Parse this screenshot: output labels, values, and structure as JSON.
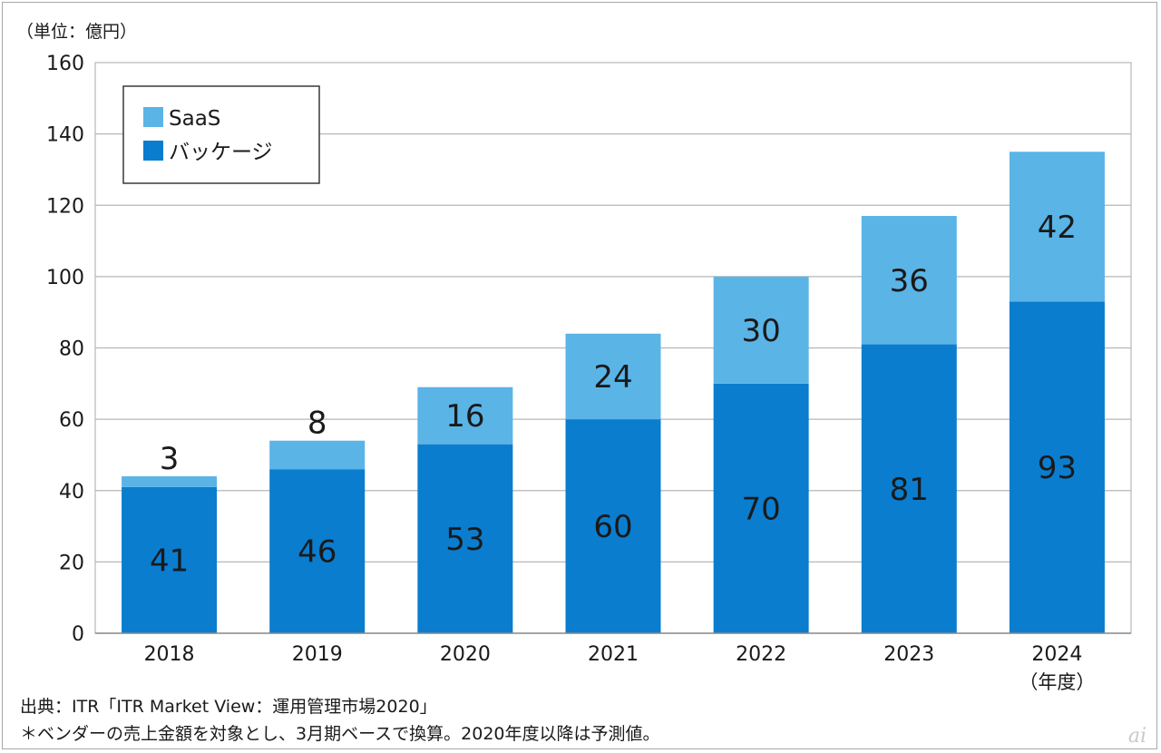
{
  "unit_label": "（単位：億円）",
  "fiscal_year_label": "（年度）",
  "source_note": "出典：ITR「ITR Market View：運用管理市場2020」",
  "footnote": "＊ベンダーの売上金額を対象とし、3月期ベースで換算。2020年度以降は予測値。",
  "watermark": "ai",
  "colors": {
    "saas": "#5ab4e6",
    "package": "#0a7dcf",
    "grid": "#b7b7b7",
    "axis": "#8a8a8a"
  },
  "chart_data": {
    "type": "bar",
    "stacked": true,
    "title": "",
    "xlabel": "",
    "ylabel": "",
    "categories": [
      "2018",
      "2019",
      "2020",
      "2021",
      "2022",
      "2023",
      "2024"
    ],
    "series": [
      {
        "name": "バッケージ",
        "key": "package",
        "values": [
          41,
          46,
          53,
          60,
          70,
          81,
          93
        ]
      },
      {
        "name": "SaaS",
        "key": "saas",
        "values": [
          3,
          8,
          16,
          24,
          30,
          36,
          42
        ]
      }
    ],
    "legend_entries": [
      "SaaS",
      "バッケージ"
    ],
    "legend_position": "top-left",
    "ylim": [
      0,
      160
    ],
    "yticks": [
      0,
      20,
      40,
      60,
      80,
      100,
      120,
      140,
      160
    ],
    "grid": true
  }
}
